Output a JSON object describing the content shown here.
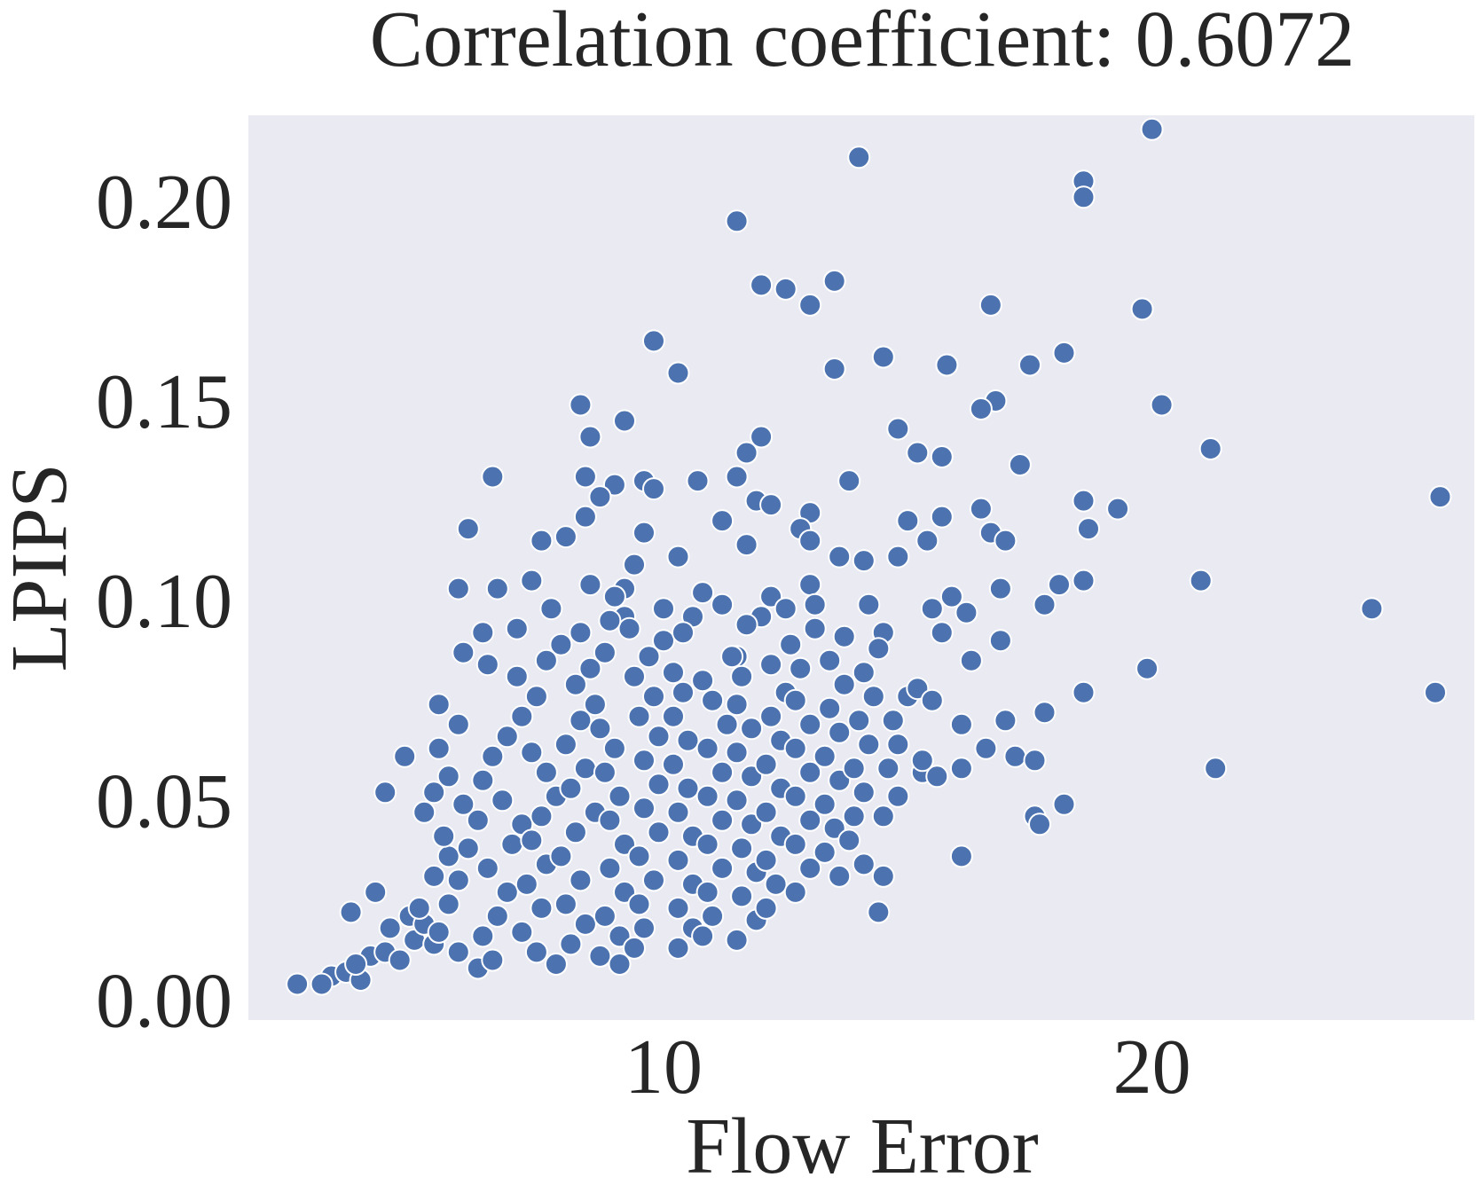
{
  "chart_data": {
    "type": "scatter",
    "title": "Correlation coefficient: 0.6072",
    "xlabel": "Flow Error",
    "ylabel": "LPIPS",
    "xlim": [
      1.5,
      26.6
    ],
    "ylim": [
      -0.005,
      0.2215
    ],
    "xticks": [
      10,
      20
    ],
    "xtick_labels": [
      "10",
      "20"
    ],
    "yticks": [
      0.0,
      0.05,
      0.1,
      0.15,
      0.2
    ],
    "ytick_labels": [
      "0.00",
      "0.05",
      "0.10",
      "0.15",
      "0.20"
    ],
    "grid": false,
    "legend": "none",
    "colors": {
      "background": "#ffffff",
      "plot_background": "#eaeaf2",
      "marker": "#4c72b0",
      "marker_edge": "#ffffff",
      "text": "#262626"
    },
    "points": [
      [
        20.0,
        0.218
      ],
      [
        14.0,
        0.211
      ],
      [
        18.6,
        0.205
      ],
      [
        18.6,
        0.201
      ],
      [
        11.5,
        0.195
      ],
      [
        12.0,
        0.179
      ],
      [
        12.5,
        0.178
      ],
      [
        13.5,
        0.18
      ],
      [
        13.0,
        0.174
      ],
      [
        19.8,
        0.173
      ],
      [
        16.7,
        0.174
      ],
      [
        9.8,
        0.165
      ],
      [
        14.5,
        0.161
      ],
      [
        15.8,
        0.159
      ],
      [
        17.5,
        0.159
      ],
      [
        18.2,
        0.162
      ],
      [
        13.5,
        0.158
      ],
      [
        10.3,
        0.157
      ],
      [
        16.8,
        0.15
      ],
      [
        16.5,
        0.148
      ],
      [
        20.2,
        0.149
      ],
      [
        8.3,
        0.149
      ],
      [
        9.2,
        0.145
      ],
      [
        8.5,
        0.141
      ],
      [
        12.0,
        0.141
      ],
      [
        14.8,
        0.143
      ],
      [
        11.7,
        0.137
      ],
      [
        15.2,
        0.137
      ],
      [
        15.7,
        0.136
      ],
      [
        21.2,
        0.138
      ],
      [
        17.3,
        0.134
      ],
      [
        6.5,
        0.131
      ],
      [
        8.4,
        0.131
      ],
      [
        9.0,
        0.129
      ],
      [
        9.6,
        0.13
      ],
      [
        10.7,
        0.13
      ],
      [
        13.8,
        0.13
      ],
      [
        11.5,
        0.131
      ],
      [
        8.7,
        0.126
      ],
      [
        9.8,
        0.128
      ],
      [
        11.9,
        0.125
      ],
      [
        12.2,
        0.124
      ],
      [
        18.6,
        0.125
      ],
      [
        16.5,
        0.123
      ],
      [
        19.3,
        0.123
      ],
      [
        25.9,
        0.126
      ],
      [
        13.0,
        0.122
      ],
      [
        15.0,
        0.12
      ],
      [
        15.7,
        0.121
      ],
      [
        6.0,
        0.118
      ],
      [
        8.4,
        0.121
      ],
      [
        9.6,
        0.117
      ],
      [
        11.2,
        0.12
      ],
      [
        12.8,
        0.118
      ],
      [
        18.7,
        0.118
      ],
      [
        16.7,
        0.117
      ],
      [
        7.5,
        0.115
      ],
      [
        8.0,
        0.116
      ],
      [
        11.7,
        0.114
      ],
      [
        13.0,
        0.115
      ],
      [
        15.4,
        0.115
      ],
      [
        17.0,
        0.115
      ],
      [
        10.3,
        0.111
      ],
      [
        9.4,
        0.109
      ],
      [
        13.6,
        0.111
      ],
      [
        14.8,
        0.111
      ],
      [
        14.1,
        0.11
      ],
      [
        5.8,
        0.103
      ],
      [
        6.6,
        0.103
      ],
      [
        7.3,
        0.105
      ],
      [
        8.5,
        0.104
      ],
      [
        9.2,
        0.103
      ],
      [
        10.8,
        0.102
      ],
      [
        12.2,
        0.101
      ],
      [
        13.0,
        0.104
      ],
      [
        15.9,
        0.101
      ],
      [
        16.9,
        0.103
      ],
      [
        18.1,
        0.104
      ],
      [
        18.6,
        0.105
      ],
      [
        21.0,
        0.105
      ],
      [
        24.5,
        0.098
      ],
      [
        17.8,
        0.099
      ],
      [
        12.5,
        0.098
      ],
      [
        14.2,
        0.099
      ],
      [
        15.5,
        0.098
      ],
      [
        16.2,
        0.097
      ],
      [
        9.2,
        0.096
      ],
      [
        10.0,
        0.098
      ],
      [
        11.2,
        0.099
      ],
      [
        6.3,
        0.092
      ],
      [
        7.0,
        0.093
      ],
      [
        8.3,
        0.092
      ],
      [
        13.1,
        0.093
      ],
      [
        14.5,
        0.092
      ],
      [
        15.7,
        0.092
      ],
      [
        16.9,
        0.09
      ],
      [
        5.9,
        0.087
      ],
      [
        6.4,
        0.084
      ],
      [
        16.3,
        0.085
      ],
      [
        19.9,
        0.083
      ],
      [
        11.5,
        0.086
      ],
      [
        25.8,
        0.077
      ],
      [
        18.6,
        0.077
      ],
      [
        5.4,
        0.074
      ],
      [
        5.8,
        0.069
      ],
      [
        16.1,
        0.069
      ],
      [
        17.0,
        0.07
      ],
      [
        17.8,
        0.072
      ],
      [
        4.7,
        0.061
      ],
      [
        5.4,
        0.063
      ],
      [
        16.6,
        0.063
      ],
      [
        17.2,
        0.061
      ],
      [
        17.6,
        0.06
      ],
      [
        21.3,
        0.058
      ],
      [
        4.3,
        0.052
      ],
      [
        16.1,
        0.058
      ],
      [
        15.3,
        0.057
      ],
      [
        18.2,
        0.049
      ],
      [
        17.6,
        0.046
      ],
      [
        17.7,
        0.044
      ],
      [
        16.1,
        0.036
      ],
      [
        14.5,
        0.031
      ],
      [
        14.4,
        0.022
      ],
      [
        3.6,
        0.022
      ],
      [
        4.1,
        0.027
      ],
      [
        2.5,
        0.004
      ],
      [
        3.2,
        0.006
      ],
      [
        3.0,
        0.004
      ],
      [
        3.5,
        0.007
      ],
      [
        3.8,
        0.005
      ],
      [
        4.0,
        0.011
      ],
      [
        3.7,
        0.009
      ],
      [
        4.3,
        0.012
      ],
      [
        4.6,
        0.01
      ],
      [
        4.9,
        0.015
      ],
      [
        4.4,
        0.018
      ],
      [
        4.8,
        0.021
      ],
      [
        5.1,
        0.019
      ],
      [
        5.3,
        0.014
      ],
      [
        5.0,
        0.023
      ],
      [
        5.3,
        0.031
      ],
      [
        5.6,
        0.036
      ],
      [
        5.5,
        0.041
      ],
      [
        5.1,
        0.047
      ],
      [
        5.3,
        0.052
      ],
      [
        5.6,
        0.056
      ],
      [
        5.9,
        0.049
      ],
      [
        6.2,
        0.045
      ],
      [
        6.0,
        0.038
      ],
      [
        5.8,
        0.03
      ],
      [
        5.6,
        0.024
      ],
      [
        5.4,
        0.017
      ],
      [
        5.8,
        0.012
      ],
      [
        6.2,
        0.008
      ],
      [
        6.5,
        0.01
      ],
      [
        6.3,
        0.016
      ],
      [
        6.6,
        0.021
      ],
      [
        6.8,
        0.027
      ],
      [
        6.4,
        0.033
      ],
      [
        6.9,
        0.039
      ],
      [
        7.1,
        0.044
      ],
      [
        6.7,
        0.05
      ],
      [
        6.3,
        0.055
      ],
      [
        6.5,
        0.061
      ],
      [
        6.8,
        0.066
      ],
      [
        7.1,
        0.071
      ],
      [
        7.4,
        0.076
      ],
      [
        7.0,
        0.081
      ],
      [
        7.6,
        0.085
      ],
      [
        7.9,
        0.089
      ],
      [
        7.3,
        0.062
      ],
      [
        7.6,
        0.057
      ],
      [
        7.8,
        0.051
      ],
      [
        7.5,
        0.046
      ],
      [
        7.3,
        0.04
      ],
      [
        7.6,
        0.034
      ],
      [
        7.2,
        0.029
      ],
      [
        7.5,
        0.023
      ],
      [
        7.1,
        0.017
      ],
      [
        7.4,
        0.012
      ],
      [
        7.8,
        0.009
      ],
      [
        8.1,
        0.014
      ],
      [
        8.4,
        0.019
      ],
      [
        8.0,
        0.024
      ],
      [
        8.3,
        0.03
      ],
      [
        7.9,
        0.036
      ],
      [
        8.2,
        0.042
      ],
      [
        8.6,
        0.047
      ],
      [
        8.1,
        0.053
      ],
      [
        8.4,
        0.058
      ],
      [
        8.0,
        0.064
      ],
      [
        8.3,
        0.07
      ],
      [
        8.6,
        0.074
      ],
      [
        8.2,
        0.079
      ],
      [
        8.5,
        0.083
      ],
      [
        8.8,
        0.087
      ],
      [
        8.7,
        0.068
      ],
      [
        9.0,
        0.063
      ],
      [
        8.8,
        0.057
      ],
      [
        9.1,
        0.051
      ],
      [
        8.9,
        0.045
      ],
      [
        9.2,
        0.039
      ],
      [
        8.9,
        0.033
      ],
      [
        9.2,
        0.027
      ],
      [
        8.8,
        0.021
      ],
      [
        9.1,
        0.016
      ],
      [
        8.7,
        0.011
      ],
      [
        9.1,
        0.009
      ],
      [
        9.4,
        0.013
      ],
      [
        9.6,
        0.018
      ],
      [
        9.5,
        0.024
      ],
      [
        9.8,
        0.03
      ],
      [
        9.5,
        0.036
      ],
      [
        9.9,
        0.042
      ],
      [
        9.6,
        0.048
      ],
      [
        9.9,
        0.054
      ],
      [
        9.6,
        0.06
      ],
      [
        9.9,
        0.066
      ],
      [
        9.5,
        0.071
      ],
      [
        9.8,
        0.076
      ],
      [
        9.4,
        0.081
      ],
      [
        9.7,
        0.086
      ],
      [
        10.0,
        0.09
      ],
      [
        9.3,
        0.093
      ],
      [
        10.2,
        0.082
      ],
      [
        10.4,
        0.077
      ],
      [
        10.2,
        0.071
      ],
      [
        10.5,
        0.065
      ],
      [
        10.2,
        0.059
      ],
      [
        10.5,
        0.053
      ],
      [
        10.3,
        0.047
      ],
      [
        10.6,
        0.041
      ],
      [
        10.3,
        0.035
      ],
      [
        10.6,
        0.029
      ],
      [
        10.3,
        0.023
      ],
      [
        10.6,
        0.018
      ],
      [
        10.3,
        0.013
      ],
      [
        10.8,
        0.016
      ],
      [
        11.0,
        0.021
      ],
      [
        10.9,
        0.027
      ],
      [
        11.2,
        0.033
      ],
      [
        10.9,
        0.039
      ],
      [
        11.2,
        0.045
      ],
      [
        10.9,
        0.051
      ],
      [
        11.2,
        0.057
      ],
      [
        10.9,
        0.063
      ],
      [
        11.3,
        0.069
      ],
      [
        11.0,
        0.075
      ],
      [
        10.8,
        0.08
      ],
      [
        11.4,
        0.086
      ],
      [
        11.6,
        0.081
      ],
      [
        11.5,
        0.074
      ],
      [
        11.8,
        0.068
      ],
      [
        11.5,
        0.062
      ],
      [
        11.8,
        0.056
      ],
      [
        11.5,
        0.05
      ],
      [
        11.8,
        0.044
      ],
      [
        11.6,
        0.038
      ],
      [
        11.9,
        0.032
      ],
      [
        11.6,
        0.026
      ],
      [
        11.9,
        0.02
      ],
      [
        11.5,
        0.015
      ],
      [
        12.1,
        0.023
      ],
      [
        12.3,
        0.029
      ],
      [
        12.1,
        0.035
      ],
      [
        12.4,
        0.041
      ],
      [
        12.1,
        0.047
      ],
      [
        12.4,
        0.053
      ],
      [
        12.1,
        0.059
      ],
      [
        12.4,
        0.065
      ],
      [
        12.2,
        0.071
      ],
      [
        12.5,
        0.077
      ],
      [
        12.2,
        0.084
      ],
      [
        12.6,
        0.089
      ],
      [
        12.8,
        0.083
      ],
      [
        12.7,
        0.075
      ],
      [
        13.0,
        0.069
      ],
      [
        12.7,
        0.063
      ],
      [
        13.0,
        0.057
      ],
      [
        12.7,
        0.051
      ],
      [
        13.0,
        0.045
      ],
      [
        12.7,
        0.039
      ],
      [
        13.0,
        0.033
      ],
      [
        12.7,
        0.027
      ],
      [
        13.3,
        0.037
      ],
      [
        13.5,
        0.043
      ],
      [
        13.3,
        0.049
      ],
      [
        13.6,
        0.055
      ],
      [
        13.3,
        0.061
      ],
      [
        13.6,
        0.067
      ],
      [
        13.4,
        0.073
      ],
      [
        13.7,
        0.079
      ],
      [
        13.4,
        0.085
      ],
      [
        13.7,
        0.091
      ],
      [
        13.9,
        0.046
      ],
      [
        14.1,
        0.052
      ],
      [
        13.9,
        0.058
      ],
      [
        14.2,
        0.064
      ],
      [
        14.0,
        0.07
      ],
      [
        14.3,
        0.076
      ],
      [
        14.1,
        0.082
      ],
      [
        14.4,
        0.088
      ],
      [
        14.6,
        0.058
      ],
      [
        14.8,
        0.064
      ],
      [
        14.7,
        0.07
      ],
      [
        15.0,
        0.076
      ],
      [
        14.5,
        0.046
      ],
      [
        14.8,
        0.051
      ],
      [
        13.8,
        0.04
      ],
      [
        14.1,
        0.034
      ],
      [
        13.6,
        0.031
      ],
      [
        15.3,
        0.06
      ],
      [
        15.6,
        0.056
      ],
      [
        15.2,
        0.078
      ],
      [
        15.5,
        0.075
      ],
      [
        9.0,
        0.101
      ],
      [
        10.6,
        0.096
      ],
      [
        7.7,
        0.098
      ],
      [
        8.9,
        0.095
      ],
      [
        10.4,
        0.092
      ],
      [
        12.0,
        0.096
      ],
      [
        13.1,
        0.099
      ],
      [
        11.7,
        0.094
      ]
    ]
  }
}
